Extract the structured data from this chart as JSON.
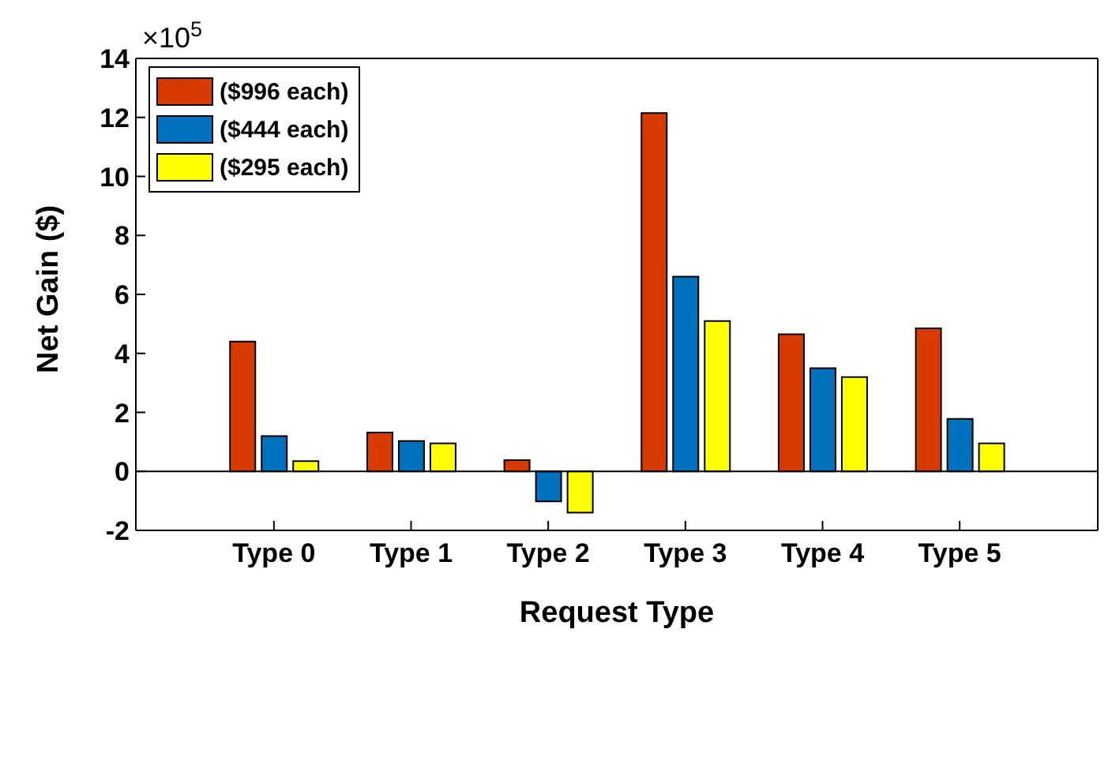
{
  "chart_data": {
    "type": "bar",
    "xlabel": "Request Type",
    "ylabel": "Net Gain ($)",
    "annotations": [
      "×10$^{5}$"
    ],
    "categories": [
      "Type 0",
      "Type 1",
      "Type 2",
      "Type 3",
      "Type 4",
      "Type 5"
    ],
    "series": [
      {
        "name": "($996 each)",
        "color": "#d83b01",
        "values": [
          4.4,
          1.32,
          0.38,
          12.15,
          4.65,
          4.85
        ]
      },
      {
        "name": "($444 each)",
        "color": "#0072bd",
        "values": [
          1.2,
          1.03,
          -1.02,
          6.6,
          3.5,
          1.78
        ]
      },
      {
        "name": "($295 each)",
        "color": "#ffff00",
        "values": [
          0.35,
          0.95,
          -1.4,
          5.1,
          3.2,
          0.95
        ]
      }
    ],
    "ylim": [
      -2,
      14
    ],
    "yticks": [
      -2,
      0,
      2,
      4,
      6,
      8,
      10,
      12,
      14
    ],
    "ref_lines": [
      {
        "axis": "y",
        "value": 0,
        "color": "#000000"
      }
    ],
    "grid": false,
    "legend": "top left"
  }
}
